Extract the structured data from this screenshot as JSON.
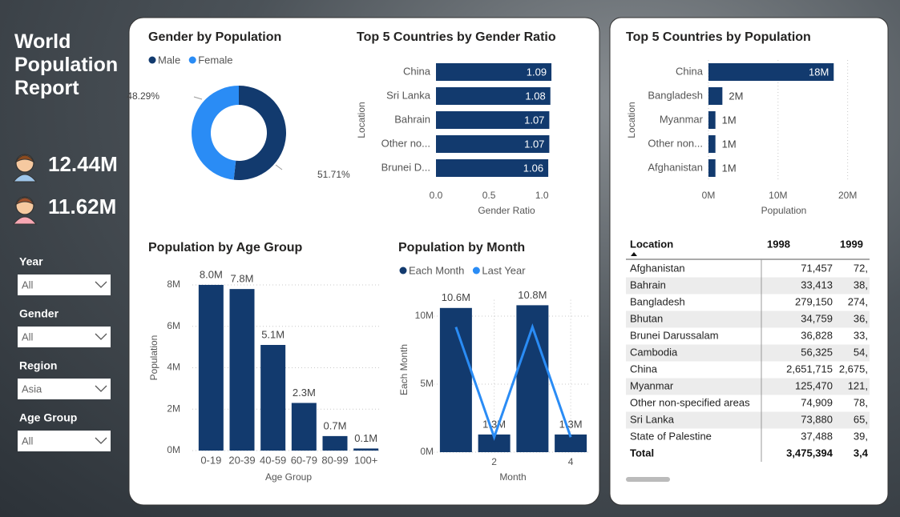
{
  "header": {
    "title": "World Population Report"
  },
  "kpis": [
    {
      "gender": "male",
      "value": "12.44M"
    },
    {
      "gender": "female",
      "value": "11.62M"
    }
  ],
  "slicers": [
    {
      "label": "Year",
      "value": "All"
    },
    {
      "label": "Gender",
      "value": "All"
    },
    {
      "label": "Region",
      "value": "Asia"
    },
    {
      "label": "Age Group",
      "value": "All"
    }
  ],
  "chart_data": [
    {
      "type": "pie",
      "donut": true,
      "title": "Gender by Population",
      "categories": [
        "Male",
        "Female"
      ],
      "colors": [
        "#123a6e",
        "#2a8cf5"
      ],
      "values": [
        51.71,
        48.29
      ],
      "value_labels": [
        "51.71%",
        "48.29%"
      ]
    },
    {
      "type": "bar",
      "orientation": "horizontal",
      "title": "Top 5 Countries by Gender Ratio",
      "categories": [
        "China",
        "Sri Lanka",
        "Bahrain",
        "Other no...",
        "Brunei D..."
      ],
      "values": [
        1.09,
        1.08,
        1.07,
        1.07,
        1.06
      ],
      "color": "#123a6e",
      "xlim": [
        0,
        1.15
      ],
      "xticks": [
        {
          "value": 0,
          "label": "0.0"
        },
        0.5,
        {
          "value": 1,
          "label": "1.0"
        }
      ],
      "x_label": "Gender Ratio",
      "y_label": "Location",
      "grid": false
    },
    {
      "type": "bar",
      "orientation": "vertical",
      "title": "Population by Age Group",
      "categories": [
        "0-19",
        "20-39",
        "40-59",
        "60-79",
        "80-99",
        "100+"
      ],
      "values": [
        8.0,
        7.8,
        5.1,
        2.3,
        0.7,
        0.1
      ],
      "value_labels": [
        "8.0M",
        "7.8M",
        "5.1M",
        "2.3M",
        "0.7M",
        "0.1M"
      ],
      "color": "#123a6e",
      "ylim": [
        0,
        8.4
      ],
      "yticks": [
        {
          "value": 0,
          "label": "0M"
        },
        {
          "value": 2,
          "label": "2M"
        },
        {
          "value": 4,
          "label": "4M"
        },
        {
          "value": 6,
          "label": "6M"
        },
        {
          "value": 8,
          "label": "8M"
        }
      ],
      "x_label": "Age Group",
      "y_label": "Population",
      "grid": true
    },
    {
      "type": "combo",
      "title": "Population by Month",
      "x": [
        1,
        2,
        3,
        4
      ],
      "xlim": [
        0.5,
        4.5
      ],
      "xticks": [
        2,
        4
      ],
      "ylim": [
        0,
        11.2
      ],
      "yticks": [
        {
          "value": 0,
          "label": "0M"
        },
        {
          "value": 5,
          "label": "5M"
        },
        {
          "value": 10,
          "label": "10M"
        }
      ],
      "x_label": "Month",
      "y_label": "Each Month",
      "grid": true,
      "series": [
        {
          "name": "Each Month",
          "type": "bar",
          "color": "#123a6e",
          "values": [
            10.6,
            1.3,
            10.8,
            1.3
          ],
          "value_labels": [
            "10.6M",
            "1.3M",
            "10.8M",
            "1.3M"
          ]
        },
        {
          "name": "Last Year",
          "type": "line",
          "color": "#2a8cf5",
          "values": [
            9.2,
            1.1,
            9.2,
            1.1
          ]
        }
      ]
    },
    {
      "type": "bar",
      "orientation": "horizontal",
      "title": "Top 5 Countries by Population",
      "categories": [
        "China",
        "Bangladesh",
        "Myanmar",
        "Other non...",
        "Afghanistan"
      ],
      "values": [
        18,
        2,
        1,
        1,
        1
      ],
      "value_labels": [
        "18M",
        "2M",
        "1M",
        "1M",
        "1M"
      ],
      "color": "#123a6e",
      "xlim": [
        0,
        20.5
      ],
      "xticks": [
        {
          "value": 0,
          "label": "0M"
        },
        {
          "value": 10,
          "label": "10M"
        },
        {
          "value": 20,
          "label": "20M"
        }
      ],
      "x_label": "Population",
      "y_label": "Location",
      "grid": true
    }
  ],
  "table": {
    "columns": [
      "Location",
      "1998",
      "1999"
    ],
    "rows": [
      [
        "Afghanistan",
        "71,457",
        "72,"
      ],
      [
        "Bahrain",
        "33,413",
        "38,"
      ],
      [
        "Bangladesh",
        "279,150",
        "274,"
      ],
      [
        "Bhutan",
        "34,759",
        "36,"
      ],
      [
        "Brunei Darussalam",
        "36,828",
        "33,"
      ],
      [
        "Cambodia",
        "56,325",
        "54,"
      ],
      [
        "China",
        "2,651,715",
        "2,675,"
      ],
      [
        "Myanmar",
        "125,470",
        "121,"
      ],
      [
        "Other non-specified areas",
        "74,909",
        "78,"
      ],
      [
        "Sri Lanka",
        "73,880",
        "65,"
      ],
      [
        "State of Palestine",
        "37,488",
        "39,"
      ]
    ],
    "total": [
      "Total",
      "3,475,394",
      "3,4"
    ]
  }
}
